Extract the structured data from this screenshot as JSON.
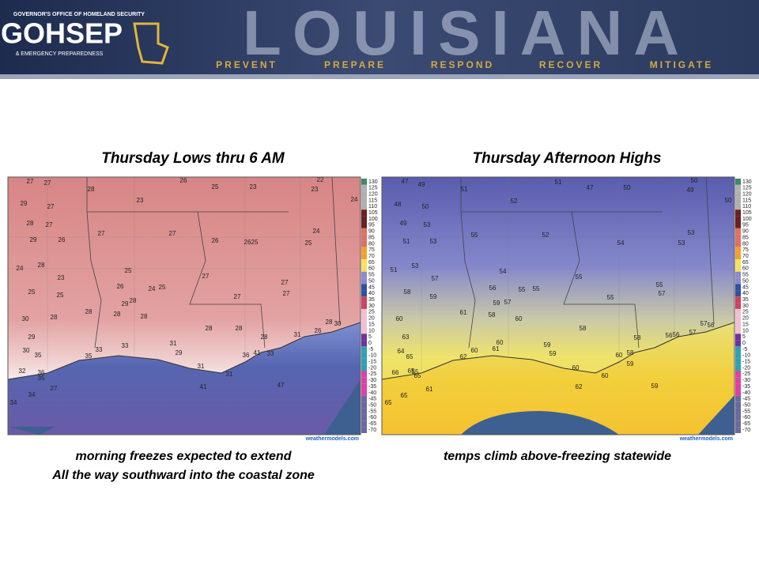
{
  "header": {
    "agency_line": "GOVERNOR'S OFFICE OF HOMELAND SECURITY",
    "logo": "GOHSEP",
    "agency_line2": "& EMERGENCY PREPAREDNESS",
    "state": "LOUISIANA",
    "mottos": [
      "PREVENT",
      "PREPARE",
      "RESPOND",
      "RECOVER",
      "MITIGATE"
    ]
  },
  "maps": [
    {
      "title": "Thursday Lows thru 6 AM",
      "station_values": [
        27,
        27,
        28,
        26,
        25,
        23,
        22,
        23,
        24,
        29,
        27,
        23,
        28,
        27,
        26,
        29,
        27,
        27,
        26,
        26,
        25,
        24,
        25,
        24,
        28,
        23,
        25,
        26,
        24,
        25,
        27,
        27,
        27,
        25,
        25,
        29,
        28,
        27,
        28,
        28,
        28,
        30,
        28,
        28,
        28,
        28,
        26,
        28,
        30,
        29,
        33,
        33,
        31,
        29,
        36,
        41,
        33,
        35,
        30,
        35,
        31,
        31,
        32,
        36,
        35,
        27,
        41,
        47,
        34,
        34,
        31
      ],
      "scale": [
        130,
        125,
        120,
        115,
        110,
        105,
        100,
        95,
        90,
        85,
        80,
        75,
        70,
        65,
        60,
        55,
        50,
        45,
        40,
        35,
        30,
        25,
        20,
        15,
        10,
        5,
        0,
        -5,
        -10,
        -15,
        -20,
        -25,
        -30,
        -35,
        -40,
        -45,
        -50,
        -55,
        -60,
        -65,
        -70
      ],
      "credit": "weathermodels.com",
      "caption": [
        "morning freezes expected to extend",
        "All the way southward into the coastal zone"
      ]
    },
    {
      "title": "Thursday Afternoon Highs",
      "station_values": [
        47,
        49,
        51,
        52,
        51,
        47,
        50,
        50,
        49,
        50,
        48,
        50,
        49,
        53,
        55,
        52,
        54,
        53,
        53,
        51,
        53,
        51,
        53,
        57,
        54,
        55,
        55,
        58,
        59,
        56,
        55,
        55,
        57,
        55,
        59,
        57,
        61,
        58,
        60,
        60,
        63,
        58,
        58,
        57,
        56,
        56,
        57,
        56,
        60,
        61,
        59,
        59,
        60,
        62,
        64,
        65,
        66,
        65,
        65,
        55,
        60,
        60,
        58,
        60,
        59,
        62,
        59,
        61,
        65,
        65
      ],
      "scale": [
        130,
        125,
        120,
        115,
        110,
        105,
        100,
        95,
        90,
        85,
        80,
        75,
        70,
        65,
        60,
        55,
        50,
        45,
        40,
        35,
        30,
        25,
        20,
        15,
        10,
        5,
        0,
        -5,
        -10,
        -15,
        -20,
        -25,
        -30,
        -35,
        -40,
        -45,
        -50,
        -55,
        -60,
        -65,
        -70
      ],
      "credit": "weathermodels.com",
      "caption": [
        "temps climb above-freezing statewide"
      ]
    }
  ]
}
